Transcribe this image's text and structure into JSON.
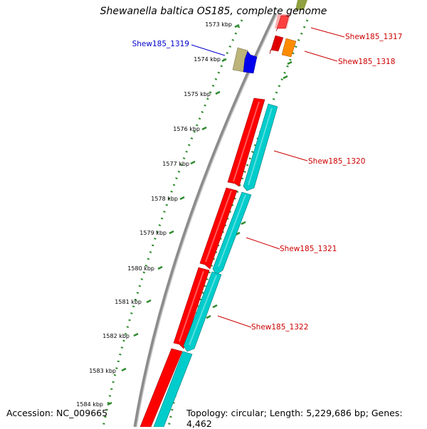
{
  "title": "Shewanella baltica OS185, complete genome",
  "accession": "Accession: NC_009665",
  "topology": "Topology: circular; Length: 5,229,686 bp; Genes: 4,462",
  "colors": {
    "backbone": "#8c8c8c",
    "tick": "#2e8b2e",
    "forward_gene": "#ff0000",
    "reverse_gene": "#00cccc",
    "highlight_label": "#0000cc",
    "label": "#cc0000",
    "gene_1317": "#ff4040",
    "gene_1318": "#ff8c00",
    "gene_1319a": "#bdb47a",
    "gene_1319b": "#0000ee",
    "pink_block": "#ffb0b0",
    "olive_block": "#8fa040"
  },
  "kbp_ticks": [
    "1573 kbp",
    "1574 kbp",
    "1575 kbp",
    "1576 kbp",
    "1577 kbp",
    "1578 kbp",
    "1579 kbp",
    "1580 kbp",
    "1581 kbp",
    "1582 kbp",
    "1583 kbp",
    "1584 kbp"
  ],
  "gene_labels": [
    "Shew185_1317",
    "Shew185_1318",
    "Shew185_1319",
    "Shew185_1320",
    "Shew185_1321",
    "Shew185_1322"
  ]
}
